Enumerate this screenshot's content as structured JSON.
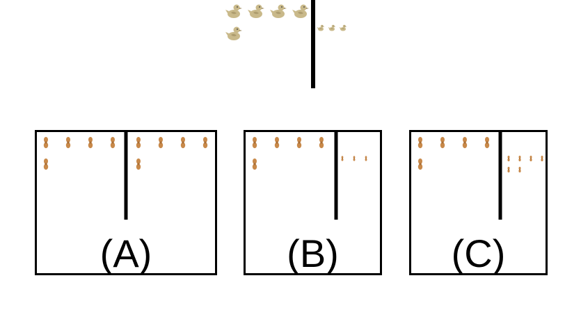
{
  "colors": {
    "duck": "#c9b98a",
    "duck_shadow": "#9c8a5e",
    "peanut": "#c8894a",
    "peanut_dark": "#a96d33",
    "line": "#000000"
  },
  "icons": {
    "big": "duck-icon",
    "small": "peanut-icon"
  },
  "reference": {
    "left_duck_count": 5,
    "right_duck_count": 3
  },
  "options": [
    {
      "label": "(A)",
      "left_count": 5,
      "right_count": 5
    },
    {
      "label": "(B)",
      "left_count": 5,
      "right_count": 3
    },
    {
      "label": "(C)",
      "left_count": 5,
      "right_count": 6
    }
  ]
}
